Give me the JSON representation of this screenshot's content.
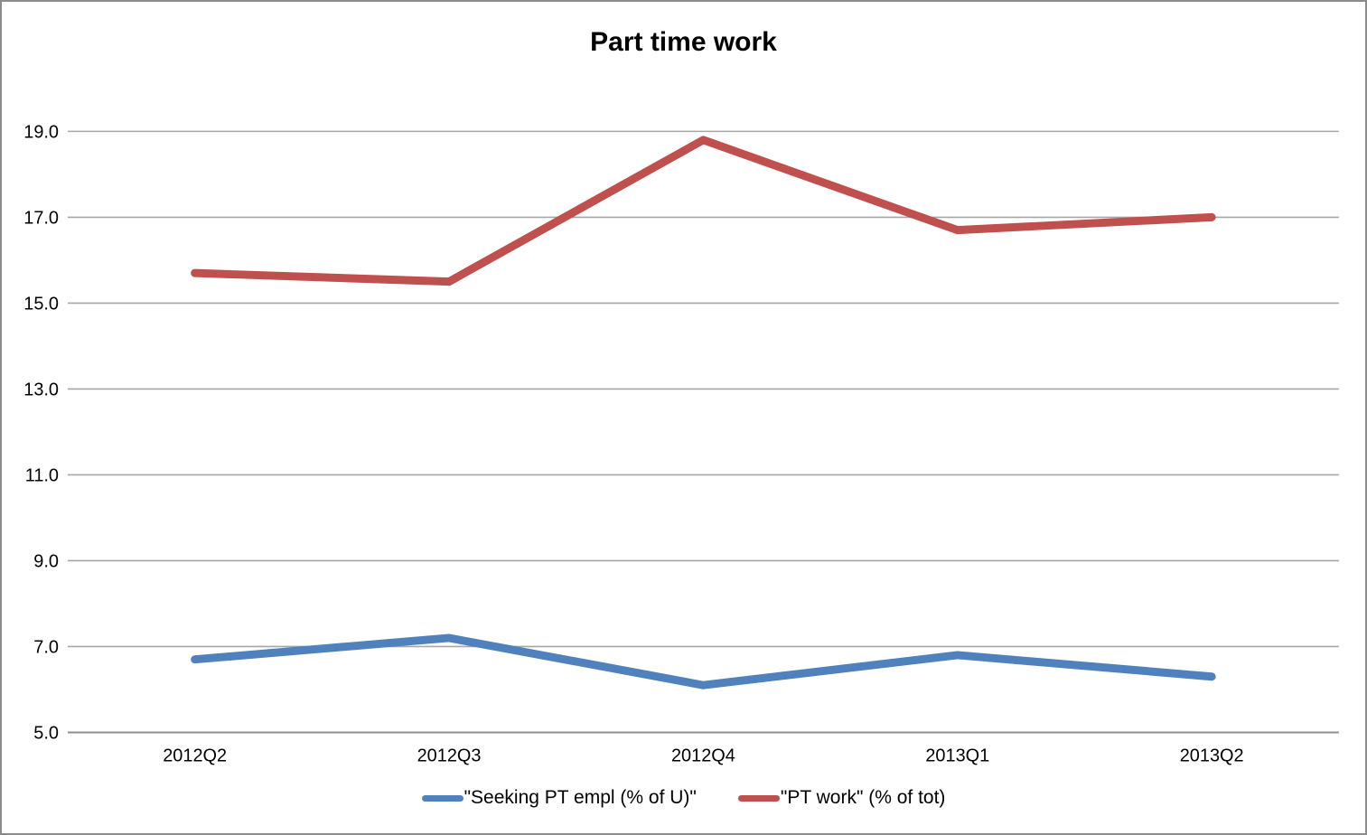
{
  "title": "Part time work",
  "chart_data": {
    "type": "line",
    "title": "Part time work",
    "categories": [
      "2012Q2",
      "2012Q3",
      "2012Q4",
      "2013Q1",
      "2013Q2"
    ],
    "series": [
      {
        "name": "\"Seeking PT empl (% of U)\"",
        "color": "#4f81bd",
        "values": [
          6.7,
          7.2,
          6.1,
          6.8,
          6.3
        ]
      },
      {
        "name": "\"PT work\" (% of tot)",
        "color": "#c0504d",
        "values": [
          15.7,
          15.5,
          18.8,
          16.7,
          17.0
        ]
      }
    ],
    "ylim": [
      5.0,
      19.0
    ],
    "yticks": [
      5.0,
      7.0,
      9.0,
      11.0,
      13.0,
      15.0,
      17.0,
      19.0
    ],
    "ytick_decimals": 1,
    "grid": true,
    "gridline_color": "#a6a6a6",
    "axis_line_color": "#8f8f8f",
    "text_color": "#000000",
    "background": "#ffffff",
    "frame_border_color": "#8c8c8c",
    "legend_position": "bottom"
  }
}
